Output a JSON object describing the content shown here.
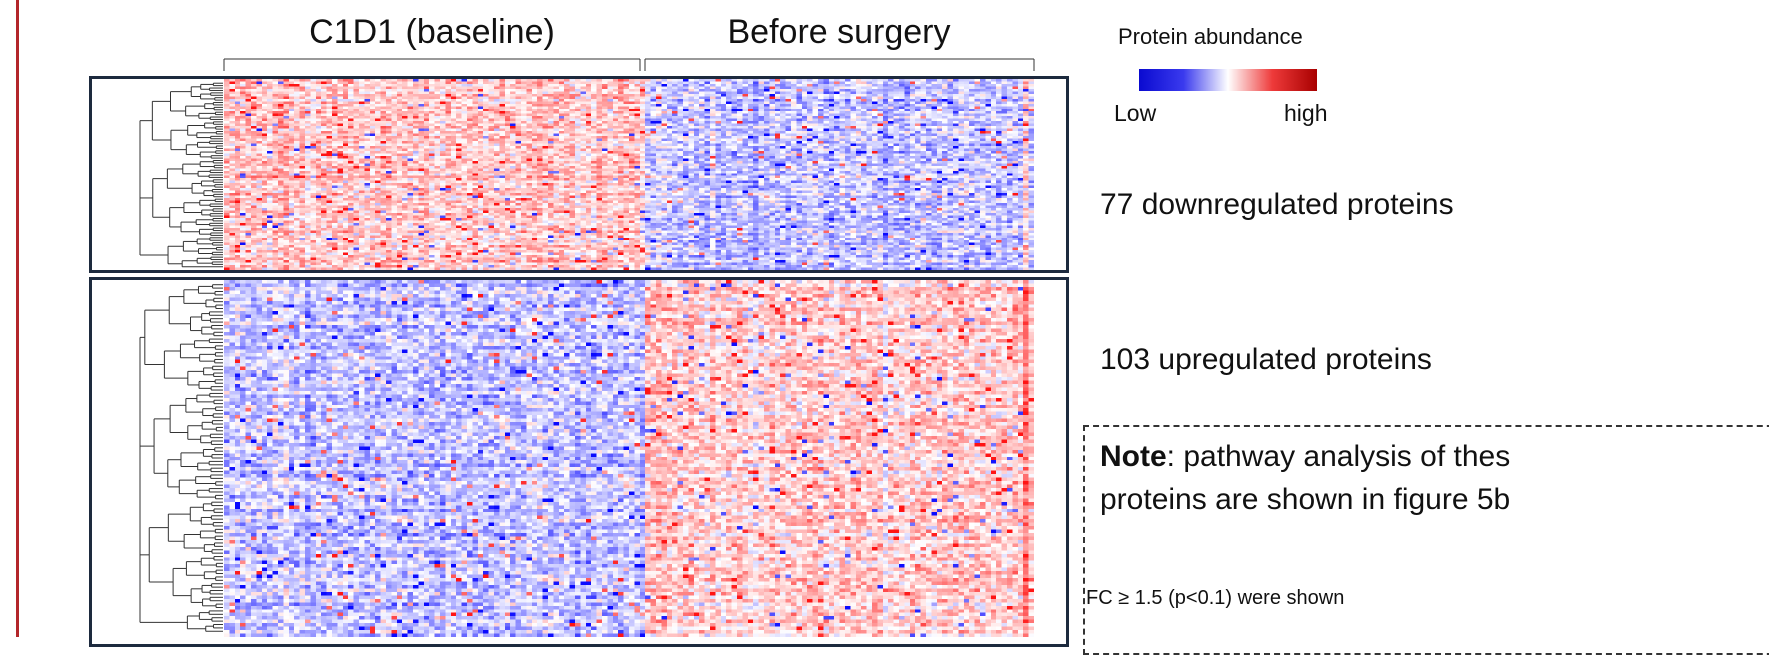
{
  "chart_data": {
    "type": "heatmap",
    "title": "",
    "column_groups": [
      {
        "label": "C1D1 (baseline)"
      },
      {
        "label": "Before surgery"
      }
    ],
    "row_panels": [
      {
        "label": "77 downregulated proteins",
        "row_count": 77,
        "trend": "downregulated"
      },
      {
        "label": "103 upregulated proteins",
        "row_count": 103,
        "trend": "upregulated"
      }
    ],
    "colorbar": {
      "title": "Protein abundance",
      "low_label": "Low",
      "high_label": "high",
      "colors": [
        "#0a0ad0",
        "#3a3aee",
        "#ffffff",
        "#ee3a3a",
        "#a80000"
      ]
    },
    "dendrogram": "row",
    "grid": false
  },
  "note": {
    "bold": "Note",
    "text1": ": pathway analysis of thes",
    "text2": "proteins are shown in figure 5b",
    "footnote": "FC ≥ 1.5 (p<0.1) were shown"
  }
}
